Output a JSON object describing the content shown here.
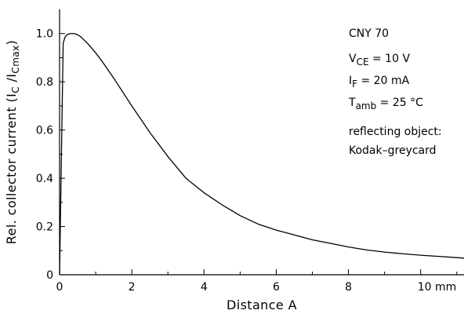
{
  "chart_data": {
    "type": "line",
    "title": "",
    "xlabel": "Distance A",
    "ylabel": {
      "prefix": "Rel.  collector current  (I",
      "sub1": "C",
      "middle": " /I",
      "sub2": "Cmax",
      "suffix": ")"
    },
    "xlim": [
      0,
      11.2
    ],
    "ylim": [
      0,
      1.1
    ],
    "x_ticks": [
      {
        "value": 0,
        "label": "0"
      },
      {
        "value": 2,
        "label": "2"
      },
      {
        "value": 4,
        "label": "4"
      },
      {
        "value": 6,
        "label": "6"
      },
      {
        "value": 8,
        "label": "8"
      },
      {
        "value": 10,
        "label": "10 mm"
      }
    ],
    "y_ticks": [
      {
        "value": 0,
        "label": "0"
      },
      {
        "value": 0.2,
        "label": "0.2"
      },
      {
        "value": 0.4,
        "label": "0.4"
      },
      {
        "value": 0.6,
        "label": "0.6"
      },
      {
        "value": 0.8,
        "label": "0.8"
      },
      {
        "value": 1.0,
        "label": "1.0"
      }
    ],
    "grid": false,
    "series": [
      {
        "x": [
          0,
          0.05,
          0.1,
          0.15,
          0.2,
          0.3,
          0.4,
          0.5,
          0.6,
          0.8,
          1.0,
          1.2,
          1.5,
          2.0,
          2.5,
          3.0,
          3.5,
          4.0,
          4.5,
          5.0,
          5.5,
          6.0,
          6.5,
          7.0,
          7.5,
          8.0,
          8.5,
          9.0,
          9.5,
          10.0,
          10.5,
          11.2
        ],
        "y": [
          0,
          0.48,
          0.96,
          0.985,
          0.995,
          1.0,
          1.0,
          0.995,
          0.985,
          0.955,
          0.92,
          0.88,
          0.815,
          0.7,
          0.59,
          0.49,
          0.4,
          0.34,
          0.29,
          0.245,
          0.21,
          0.185,
          0.165,
          0.145,
          0.13,
          0.115,
          0.103,
          0.094,
          0.087,
          0.081,
          0.076,
          0.069
        ]
      }
    ],
    "annotations": [
      {
        "id": "part",
        "segments": [
          {
            "text": "CNY 70"
          }
        ]
      },
      {
        "id": "vce",
        "segments": [
          {
            "text": "V"
          },
          {
            "text": "CE",
            "sub": true
          },
          {
            "text": " = 10 V"
          }
        ]
      },
      {
        "id": "if",
        "segments": [
          {
            "text": "I"
          },
          {
            "text": "F",
            "sub": true
          },
          {
            "text": " = 20 mA"
          }
        ]
      },
      {
        "id": "tamb",
        "segments": [
          {
            "text": "T"
          },
          {
            "text": "amb",
            "sub": true
          },
          {
            "text": " = 25 °C"
          }
        ]
      },
      {
        "id": "object1",
        "segments": [
          {
            "text": "reflecting object:"
          }
        ]
      },
      {
        "id": "object2",
        "segments": [
          {
            "text": "Kodak–greycard"
          }
        ]
      }
    ]
  }
}
